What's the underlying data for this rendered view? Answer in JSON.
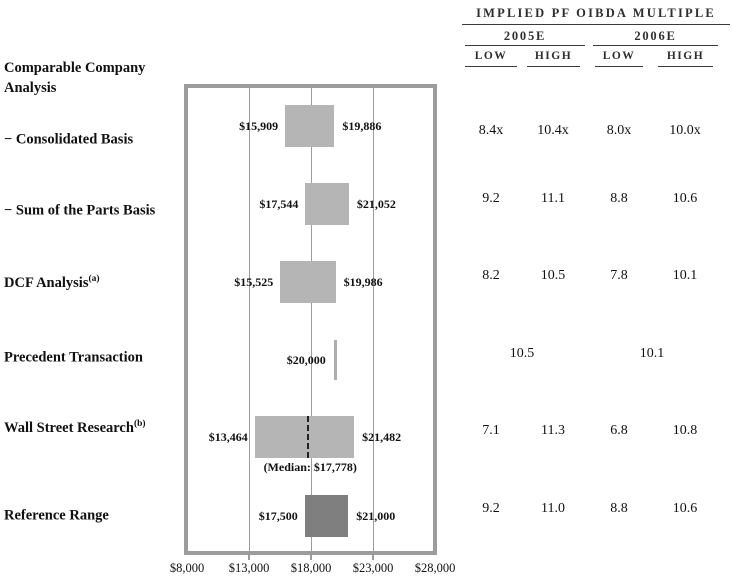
{
  "section_title": "Comparable Company Analysis",
  "multiple_table": {
    "title": "IMPLIED PF OIBDA MULTIPLE",
    "year_groups": [
      {
        "label": "2005E",
        "columns": [
          "LOW",
          "HIGH"
        ]
      },
      {
        "label": "2006E",
        "columns": [
          "LOW",
          "HIGH"
        ]
      }
    ]
  },
  "chart_data": {
    "type": "bar",
    "subtype": "horizontal-range-football-field",
    "xlim": [
      8000,
      28000
    ],
    "grid": true,
    "x_ticks": [
      {
        "value": 8000,
        "label": "$8,000"
      },
      {
        "value": 13000,
        "label": "$13,000"
      },
      {
        "value": 18000,
        "label": "$18,000"
      },
      {
        "value": 23000,
        "label": "$23,000"
      },
      {
        "value": 28000,
        "label": "$28,000"
      }
    ],
    "rows": [
      {
        "label": "− Consolidated Basis",
        "sup": "",
        "bar": {
          "kind": "range",
          "low": 15909,
          "high": 19886,
          "low_label": "$15,909",
          "high_label": "$19,886",
          "color": "light"
        },
        "multiples": {
          "merged": false,
          "values": [
            "8.4x",
            "10.4x",
            "8.0x",
            "10.0x"
          ]
        }
      },
      {
        "label": "− Sum of the Parts Basis",
        "sup": "",
        "bar": {
          "kind": "range",
          "low": 17544,
          "high": 21052,
          "low_label": "$17,544",
          "high_label": "$21,052",
          "color": "light"
        },
        "multiples": {
          "merged": false,
          "values": [
            "9.2",
            "11.1",
            "8.8",
            "10.6"
          ]
        }
      },
      {
        "label": "DCF Analysis",
        "sup": "(a)",
        "bar": {
          "kind": "range",
          "low": 15525,
          "high": 19986,
          "low_label": "$15,525",
          "high_label": "$19,986",
          "color": "light"
        },
        "multiples": {
          "merged": false,
          "values": [
            "8.2",
            "10.5",
            "7.8",
            "10.1"
          ]
        }
      },
      {
        "label": "Precedent Transaction",
        "sup": "",
        "bar": {
          "kind": "tick",
          "value": 20000,
          "low_label": "$20,000",
          "color": "light"
        },
        "multiples": {
          "merged": true,
          "values": [
            "10.5",
            "10.1"
          ]
        }
      },
      {
        "label": "Wall Street Research",
        "sup": "(b)",
        "bar": {
          "kind": "range",
          "low": 13464,
          "high": 21482,
          "low_label": "$13,464",
          "high_label": "$21,482",
          "color": "light",
          "median": 17778,
          "median_label": "(Median: $17,778)"
        },
        "multiples": {
          "merged": false,
          "values": [
            "7.1",
            "11.3",
            "6.8",
            "10.8"
          ]
        }
      },
      {
        "label": "Reference Range",
        "sup": "",
        "bar": {
          "kind": "range",
          "low": 17500,
          "high": 21000,
          "low_label": "$17,500",
          "high_label": "$21,000",
          "color": "dark"
        },
        "multiples": {
          "merged": false,
          "values": [
            "9.2",
            "11.0",
            "8.8",
            "10.6"
          ]
        }
      }
    ]
  },
  "colors": {
    "bar_light": "#b5b5b5",
    "bar_dark": "#7f7f7f",
    "frame": "#9c9c9c",
    "gridline": "#9c9c9c",
    "text": "#111111"
  }
}
